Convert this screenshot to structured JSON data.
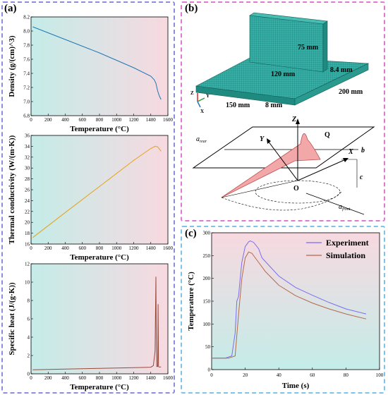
{
  "panel_labels": {
    "a": "(a)",
    "b": "(b)",
    "c": "(c)"
  },
  "colors": {
    "density": "#1f77b4",
    "conductivity": "#e6a117",
    "specific_heat": "#9b4a3a",
    "experiment": "#7b6cf0",
    "simulation": "#b5694a",
    "mesh": "#2aa198",
    "heat_source": "#f0a0a0"
  },
  "chart_data": [
    {
      "type": "line",
      "ylabel": "Density (g/(cm)^3)",
      "xlabel": "Temperature (°C)",
      "xlim": [
        0,
        1600
      ],
      "ylim": [
        6.8,
        8.2
      ],
      "xticks": [
        "0",
        "200",
        "400",
        "600",
        "800",
        "1000",
        "1200",
        "1400",
        "1600"
      ],
      "yticks": [
        "6.8",
        "7.0",
        "7.2",
        "7.4",
        "7.6",
        "7.8",
        "8.0",
        "8.2"
      ],
      "x": [
        20,
        400,
        800,
        1200,
        1400,
        1440,
        1460,
        1480,
        1500,
        1520
      ],
      "y": [
        8.06,
        7.88,
        7.69,
        7.48,
        7.36,
        7.31,
        7.26,
        7.15,
        7.08,
        7.03
      ]
    },
    {
      "type": "line",
      "ylabel": "Thermal conductivity (W/(m·K))",
      "xlabel": "Temperature (°C)",
      "xlim": [
        0,
        1600
      ],
      "ylim": [
        16,
        36
      ],
      "xticks": [
        "0",
        "200",
        "400",
        "600",
        "800",
        "1000",
        "1200",
        "1400",
        "1600"
      ],
      "yticks": [
        "16",
        "18",
        "20",
        "22",
        "24",
        "26",
        "28",
        "30",
        "32",
        "34",
        "36"
      ],
      "x": [
        20,
        400,
        800,
        1200,
        1400,
        1450,
        1480,
        1500,
        1520
      ],
      "y": [
        17.2,
        21.8,
        26.6,
        31.4,
        33.6,
        34.0,
        33.9,
        33.5,
        33.1
      ]
    },
    {
      "type": "line",
      "ylabel": "Specific heat (J/(g·K))",
      "xlabel": "Temperature (°C)",
      "xlim": [
        0,
        1600
      ],
      "ylim": [
        0,
        12
      ],
      "xticks": [
        "0",
        "200",
        "400",
        "600",
        "800",
        "1000",
        "1200",
        "1400",
        "1600"
      ],
      "yticks": [
        "0",
        "2",
        "4",
        "6",
        "8",
        "10",
        "12"
      ],
      "x": [
        20,
        400,
        800,
        1200,
        1400,
        1430,
        1450,
        1460,
        1465,
        1470,
        1480,
        1485,
        1490,
        1495,
        1500,
        1510,
        1520
      ],
      "y": [
        0.45,
        0.52,
        0.6,
        0.68,
        0.72,
        0.9,
        2.5,
        10.6,
        3.0,
        0.8,
        0.8,
        7.6,
        0.8,
        0.75,
        0.75,
        0.75,
        0.75
      ]
    },
    {
      "type": "line",
      "xlabel": "Time (s)",
      "ylabel": "Temperature (°C)",
      "xlim": [
        0,
        100
      ],
      "ylim": [
        0,
        300
      ],
      "xticks": [
        "0",
        "20",
        "40",
        "60",
        "80",
        "100"
      ],
      "yticks": [
        "0",
        "50",
        "100",
        "150",
        "200",
        "250",
        "300"
      ],
      "legend": "top-right",
      "series": [
        {
          "name": "Experiment",
          "x": [
            0,
            8,
            12,
            14,
            15,
            16,
            17,
            18,
            20,
            22,
            23,
            25,
            28,
            30,
            35,
            40,
            50,
            60,
            70,
            80,
            92
          ],
          "y": [
            25,
            25,
            30,
            80,
            150,
            160,
            200,
            235,
            270,
            280,
            282,
            279,
            265,
            245,
            225,
            205,
            180,
            163,
            147,
            133,
            122
          ]
        },
        {
          "name": "Simulation",
          "x": [
            0,
            10,
            14,
            16,
            18,
            20,
            22,
            24,
            28,
            32,
            40,
            50,
            60,
            70,
            80,
            92
          ],
          "y": [
            25,
            25,
            30,
            120,
            200,
            245,
            258,
            255,
            235,
            215,
            185,
            162,
            146,
            133,
            122,
            111
          ]
        }
      ]
    }
  ],
  "diagram": {
    "axis_labels": {
      "z": "Z",
      "y": "Y",
      "x": "X",
      "origin": "O",
      "q": "Q",
      "b": "b",
      "c": "c",
      "a_rear": "a",
      "a_rear_sub": "rear",
      "a_front": "a",
      "a_front_sub": "front"
    },
    "dims": {
      "height": "75 mm",
      "stiffener_len": "120 mm",
      "thick_v": "8.4 mm",
      "length": "200 mm",
      "width": "150 mm",
      "thick_h": "8 mm"
    },
    "triad": {
      "z": "Z",
      "y": "Y",
      "x": "X"
    }
  }
}
